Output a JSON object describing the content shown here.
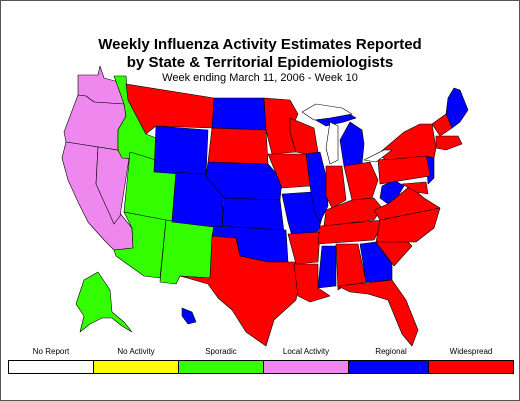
{
  "title_line1": "Weekly Influenza Activity Estimates Reported",
  "title_line2": "by State & Territorial Epidemiologists",
  "subtitle": "Week ending March 11, 2006 - Week 10",
  "legend": [
    {
      "label": "No Report",
      "color": "#ffffff"
    },
    {
      "label": "No Activity",
      "color": "#ffff00"
    },
    {
      "label": "Sporadic",
      "color": "#33ff00"
    },
    {
      "label": "Local Activity",
      "color": "#ee88ee"
    },
    {
      "label": "Regional",
      "color": "#0000ff"
    },
    {
      "label": "Widespread",
      "color": "#ff0000"
    }
  ],
  "levels": {
    "sporadic": "#33ff00",
    "local": "#ee88ee",
    "regional": "#0000ff",
    "widespread": "#ff0000"
  }
}
